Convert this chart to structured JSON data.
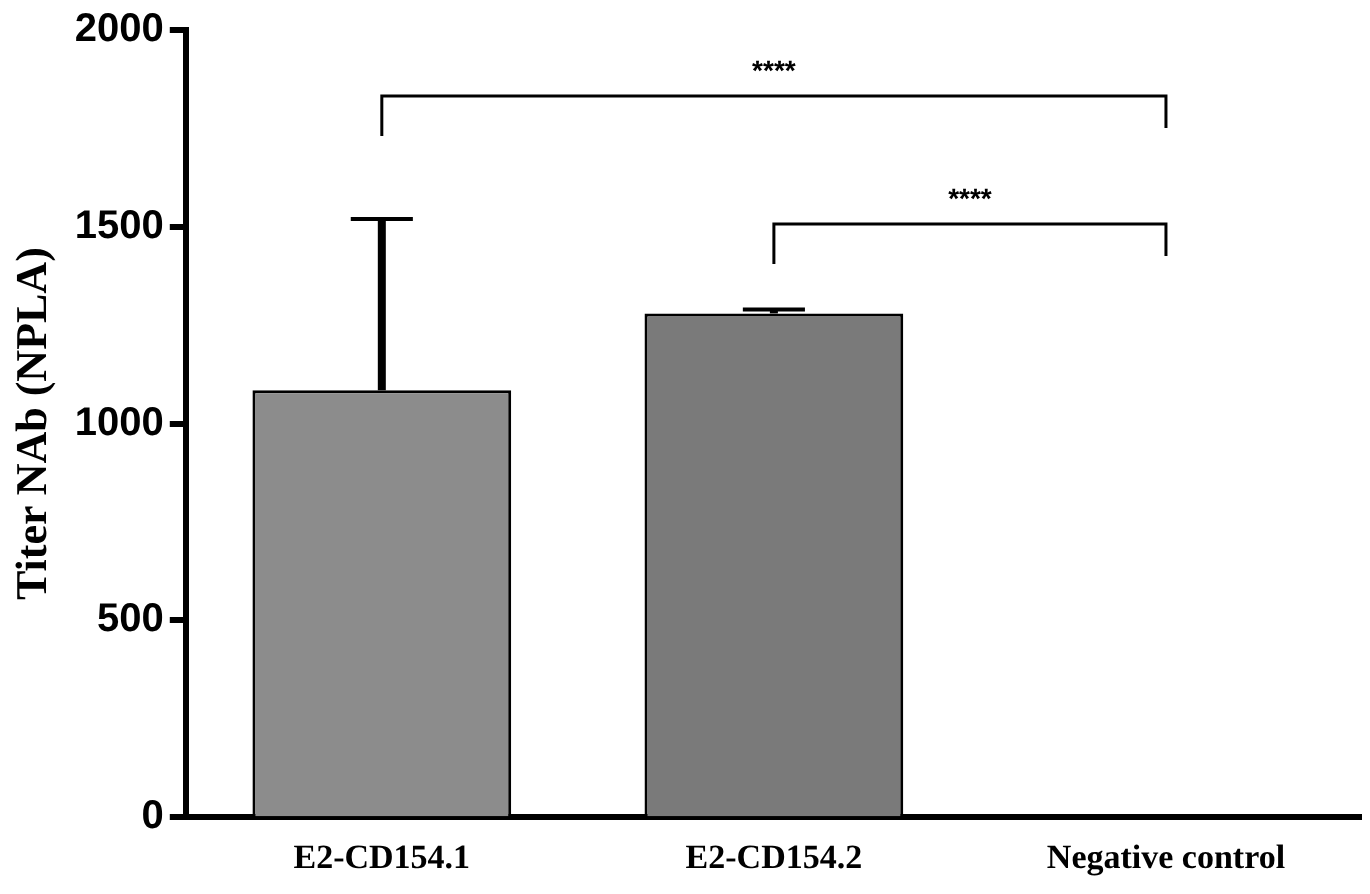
{
  "chart_data": {
    "type": "bar",
    "ylabel": "Titer NAb (NPLA)",
    "categories": [
      "E2-CD154.1",
      "E2-CD154.2",
      "Negative control"
    ],
    "values": [
      1085,
      1280,
      0
    ],
    "errors": [
      [
        1085,
        1520
      ],
      [
        1280,
        1290
      ],
      null
    ],
    "colors": [
      "#8c8c8c",
      "#7a7a7a",
      "#ffffff"
    ],
    "ylim": [
      0,
      2000
    ],
    "yticks": [
      0,
      500,
      1000,
      1500,
      2000
    ],
    "grid": false,
    "legend": false,
    "annotations": [
      "****",
      "****"
    ]
  }
}
